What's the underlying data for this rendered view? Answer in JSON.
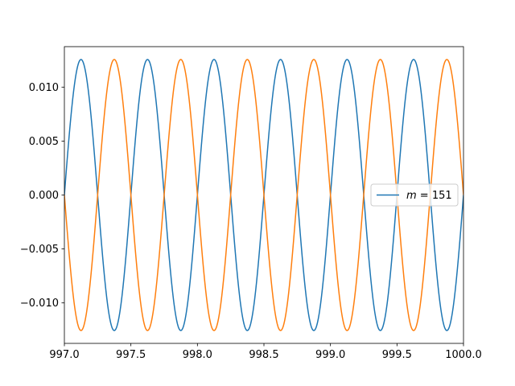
{
  "chart_data": {
    "type": "line",
    "title": "",
    "xlabel": "",
    "ylabel": "",
    "xlim": [
      997.0,
      1000.0
    ],
    "ylim": [
      -0.01375,
      0.01375
    ],
    "x_ticks": [
      997.0,
      997.5,
      998.0,
      998.5,
      999.0,
      999.5,
      1000.0
    ],
    "x_tick_labels": [
      "997.0",
      "997.5",
      "998.0",
      "998.5",
      "999.0",
      "999.5",
      "1000.0"
    ],
    "y_ticks": [
      -0.01,
      -0.005,
      0.0,
      0.005,
      0.01
    ],
    "y_tick_labels": [
      "−0.010",
      "−0.005",
      "0.000",
      "0.005",
      "0.010"
    ],
    "grid": false,
    "legend": {
      "location": "center-right",
      "entries": [
        {
          "label_var": "m",
          "label_rest": " = 151",
          "color": "#1f77b4"
        }
      ]
    },
    "series": [
      {
        "color": "#1f77b4",
        "amplitude": 0.01256,
        "period": 0.5,
        "phase_x": 997.0,
        "function": "sin"
      },
      {
        "color": "#ff7f0e",
        "amplitude": 0.01256,
        "period": 0.5,
        "phase_x": 997.0,
        "function": "-sin"
      }
    ]
  }
}
